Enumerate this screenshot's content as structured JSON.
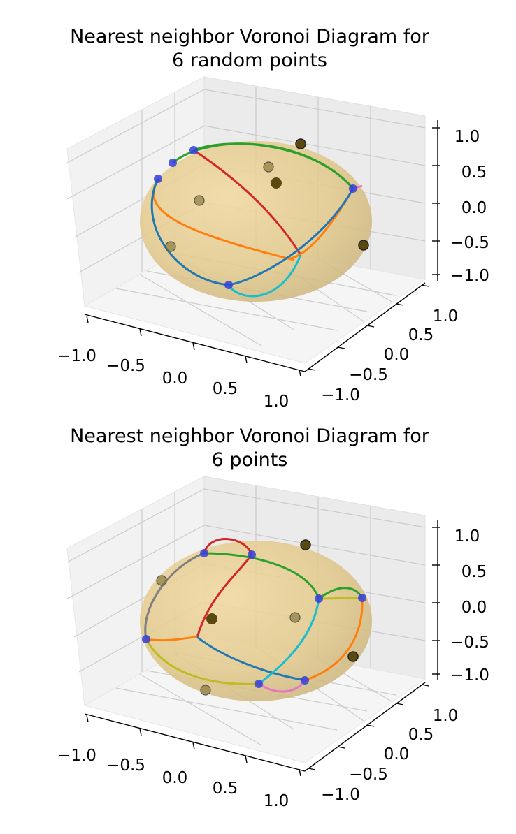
{
  "chart_data": [
    {
      "type": "scatter",
      "subtype": "3d-sphere-voronoi",
      "title_line1": "Nearest neighbor Voronoi Diagram for",
      "title_line2": "6 random points",
      "xlabel": "",
      "ylabel": "",
      "zlabel": "",
      "xlim": [
        -1.0,
        1.0
      ],
      "ylim": [
        -1.0,
        1.0
      ],
      "zlim": [
        -1.0,
        1.0
      ],
      "x_ticks": [
        "−1.0",
        "−0.5",
        "0.0",
        "0.5",
        "1.0"
      ],
      "y_ticks": [
        "−1.0",
        "−0.5",
        "0.0",
        "0.5",
        "1.0"
      ],
      "z_ticks": [
        "−1.0",
        "−0.5",
        "0.0",
        "0.5",
        "1.0"
      ],
      "grid": true,
      "sphere_color": "#e6c97f",
      "point_color": "#5a4a10",
      "vertex_color": "#3340d9",
      "points": [
        {
          "x": -0.55,
          "y": 0.55,
          "z": 0.45
        },
        {
          "x": 0.6,
          "y": 0.55,
          "z": 0.8
        },
        {
          "x": 0.3,
          "y": 0.1,
          "z": 0.45
        },
        {
          "x": -0.75,
          "y": 0.2,
          "z": 0.05
        },
        {
          "x": -0.9,
          "y": -0.3,
          "z": -0.35
        },
        {
          "x": 0.95,
          "y": 0.1,
          "z": -0.3
        }
      ],
      "voronoi_vertices": [
        {
          "x": -0.2,
          "y": 0.9,
          "z": 0.4
        },
        {
          "x": -0.55,
          "y": 0.7,
          "z": 0.5
        },
        {
          "x": -0.8,
          "y": 0.55,
          "z": 0.3
        },
        {
          "x": 0.7,
          "y": 0.7,
          "z": 0.1
        },
        {
          "x": 0.2,
          "y": -0.8,
          "z": -0.55
        }
      ],
      "edge_colors": [
        "#d62728",
        "#2ca02c",
        "#ff7f0e",
        "#1f77b4",
        "#17becf",
        "#e377c2"
      ]
    },
    {
      "type": "scatter",
      "subtype": "3d-sphere-voronoi",
      "title_line1": "Nearest neighbor Voronoi Diagram for",
      "title_line2": "6 points",
      "xlabel": "",
      "ylabel": "",
      "zlabel": "",
      "xlim": [
        -1.0,
        1.0
      ],
      "ylim": [
        -1.0,
        1.0
      ],
      "zlim": [
        -1.0,
        1.0
      ],
      "x_ticks": [
        "−1.0",
        "−0.5",
        "0.0",
        "0.5",
        "1.0"
      ],
      "y_ticks": [
        "−1.0",
        "−0.5",
        "0.0",
        "0.5",
        "1.0"
      ],
      "z_ticks": [
        "−1.0",
        "−0.5",
        "0.0",
        "0.5",
        "1.0"
      ],
      "grid": true,
      "sphere_color": "#e6c97f",
      "point_color": "#5a4a10",
      "vertex_color": "#3340d9",
      "points": [
        {
          "x": 0.8,
          "y": 0.4,
          "z": 0.95
        },
        {
          "x": -0.85,
          "y": 0.3,
          "z": 0.4
        },
        {
          "x": -0.4,
          "y": -0.3,
          "z": -0.1
        },
        {
          "x": 0.35,
          "y": 0.2,
          "z": 0.05
        },
        {
          "x": 0.85,
          "y": -0.1,
          "z": -0.65
        },
        {
          "x": -0.4,
          "y": -0.8,
          "z": -0.85
        }
      ],
      "voronoi_vertices": [
        {
          "x": -0.45,
          "y": 0.65,
          "z": 0.6
        },
        {
          "x": 0.1,
          "y": 0.8,
          "z": 0.55
        },
        {
          "x": 0.4,
          "y": -0.4,
          "z": 0.05
        },
        {
          "x": 0.9,
          "y": 0.1,
          "z": 0.05
        },
        {
          "x": -0.95,
          "y": -0.2,
          "z": -0.45
        },
        {
          "x": 0.1,
          "y": -0.7,
          "z": -0.7
        },
        {
          "x": 0.4,
          "y": -0.7,
          "z": -0.65
        }
      ],
      "edge_colors": [
        "#d62728",
        "#2ca02c",
        "#ff7f0e",
        "#1f77b4",
        "#17becf",
        "#e377c2",
        "#7f7f7f",
        "#bcbd22"
      ]
    }
  ]
}
